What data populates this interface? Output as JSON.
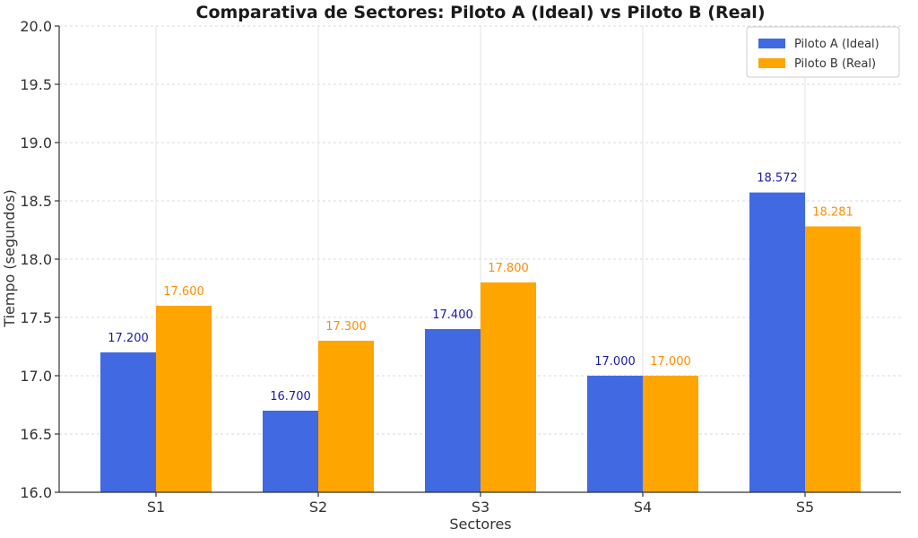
{
  "chart_data": {
    "type": "bar",
    "title": "Comparativa de Sectores: Piloto A (Ideal) vs Piloto B (Real)",
    "xlabel": "Sectores",
    "ylabel": "Tiempo (segundos)",
    "categories": [
      "S1",
      "S2",
      "S3",
      "S4",
      "S5"
    ],
    "ylim": [
      16.0,
      20.0
    ],
    "yticks": [
      "16.0",
      "16.5",
      "17.0",
      "17.5",
      "18.0",
      "18.5",
      "19.0",
      "19.5",
      "20.0"
    ],
    "grid": true,
    "legend_position": "top-right",
    "series": [
      {
        "name": "Piloto A (Ideal)",
        "color": "#4169e1",
        "label_color": "#1a1aaa",
        "values": [
          17.2,
          16.7,
          17.4,
          17.0,
          18.572
        ],
        "labels": [
          "17.200",
          "16.700",
          "17.400",
          "17.000",
          "18.572"
        ]
      },
      {
        "name": "Piloto B (Real)",
        "color": "#ffa500",
        "label_color": "#ff8c00",
        "values": [
          17.6,
          17.3,
          17.8,
          17.0,
          18.281
        ],
        "labels": [
          "17.600",
          "17.300",
          "17.800",
          "17.000",
          "18.281"
        ]
      }
    ]
  }
}
